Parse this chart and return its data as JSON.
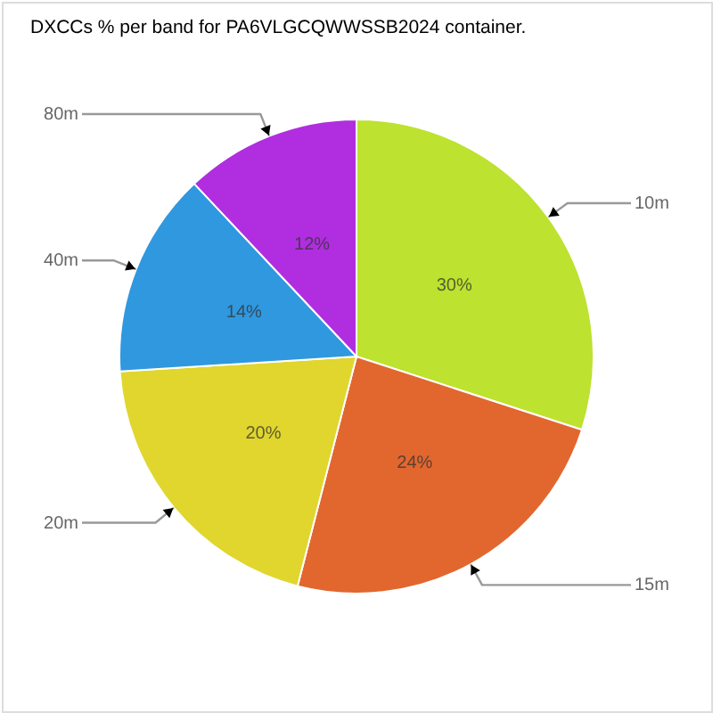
{
  "chart_data": {
    "type": "pie",
    "title": "DXCCs % per band for PA6VLGCQWWSSB2024 container.",
    "categories": [
      "10m",
      "15m",
      "20m",
      "40m",
      "80m"
    ],
    "values": [
      30,
      24,
      20,
      14,
      12
    ],
    "colors": [
      "#bde22f",
      "#e1672f",
      "#e0d62e",
      "#2f98df",
      "#b02edf"
    ],
    "value_labels": [
      "30%",
      "24%",
      "20%",
      "14%",
      "12%"
    ]
  }
}
